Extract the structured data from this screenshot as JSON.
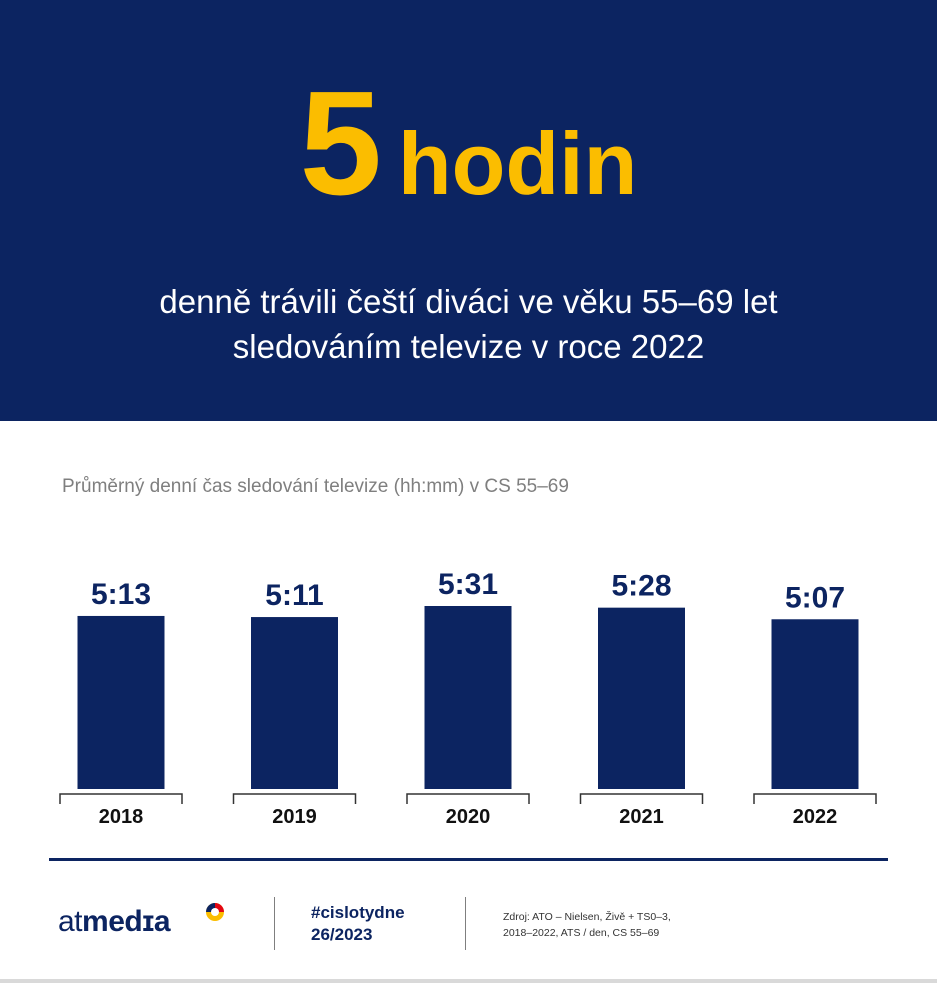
{
  "header": {
    "number": "5",
    "unit": "hodin",
    "line1": "denně trávili čeští diváci ve věku 55–69 let",
    "line2": "sledováním  televize  v roce 2022"
  },
  "chart_data": {
    "type": "bar",
    "title": "Průměrný  denní  čas sledování televize (hh:mm)  v CS 55–69",
    "categories": [
      "2018",
      "2019",
      "2020",
      "2021",
      "2022"
    ],
    "values": [
      313,
      311,
      331,
      328,
      307
    ],
    "labels": [
      "5:13",
      "5:11",
      "5:31",
      "5:28",
      "5:07"
    ],
    "units": "minutes",
    "bar_color": "#0c2461"
  },
  "footer": {
    "logo_plain": "at",
    "logo_bold": "med",
    "logo_tail": "ɪa",
    "hashtag": "#cislotydne",
    "issue": "26/2023",
    "source_line1": "Zdroj: ATO – Nielsen,  Živě + TS0–3,",
    "source_line2": "2018–2022, ATS / den, CS 55–69"
  },
  "colors": {
    "navy": "#0c2461",
    "yellow": "#fbbd00",
    "grey": "#7f7f7f"
  }
}
